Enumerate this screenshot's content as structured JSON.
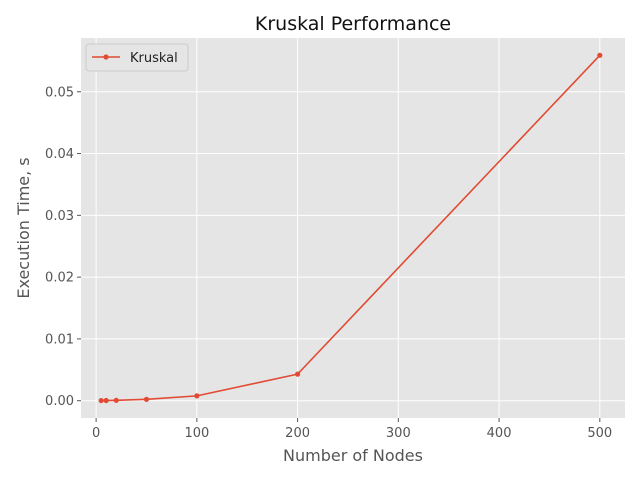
{
  "chart_data": {
    "type": "line",
    "title": "Kruskal Performance",
    "xlabel": "Number of Nodes",
    "ylabel": "Execution Time, s",
    "xlim": [
      -15,
      525
    ],
    "ylim": [
      -0.0028,
      0.0587
    ],
    "xticks": [
      0,
      100,
      200,
      300,
      400,
      500
    ],
    "yticks": [
      0.0,
      0.01,
      0.02,
      0.03,
      0.04,
      0.05
    ],
    "xtick_labels": [
      "0",
      "100",
      "200",
      "300",
      "400",
      "500"
    ],
    "ytick_labels": [
      "0.00",
      "0.01",
      "0.02",
      "0.03",
      "0.04",
      "0.05"
    ],
    "grid": true,
    "legend_position": "top-left",
    "series": [
      {
        "name": "Kruskal",
        "color": "#E24A33",
        "x": [
          5,
          10,
          20,
          50,
          100,
          200,
          500
        ],
        "y": [
          2e-05,
          3e-05,
          6e-05,
          0.00022,
          0.00078,
          0.0043,
          0.0559
        ]
      }
    ]
  }
}
